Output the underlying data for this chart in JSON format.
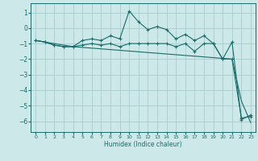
{
  "xlabel": "Humidex (Indice chaleur)",
  "background_color": "#cce8e8",
  "grid_color": "#aacccc",
  "line_color": "#1a6b6b",
  "xlim": [
    -0.5,
    23.5
  ],
  "ylim": [
    -6.7,
    1.6
  ],
  "yticks": [
    1,
    0,
    -1,
    -2,
    -3,
    -4,
    -5,
    -6
  ],
  "xticks": [
    0,
    1,
    2,
    3,
    4,
    5,
    6,
    7,
    8,
    9,
    10,
    11,
    12,
    13,
    14,
    15,
    16,
    17,
    18,
    19,
    20,
    21,
    22,
    23
  ],
  "line1_x": [
    0,
    1,
    2,
    3,
    4,
    5,
    6,
    7,
    8,
    9,
    10,
    11,
    12,
    13,
    14,
    15,
    16,
    17,
    18,
    19,
    20,
    21,
    22,
    23
  ],
  "line1_y": [
    -0.8,
    -0.9,
    -1.1,
    -1.2,
    -1.2,
    -1.1,
    -1.0,
    -1.1,
    -1.0,
    -1.2,
    -1.0,
    -1.0,
    -1.0,
    -1.0,
    -1.0,
    -1.2,
    -1.0,
    -1.5,
    -1.0,
    -1.0,
    -2.0,
    -2.0,
    -5.8,
    -5.7
  ],
  "line2_x": [
    0,
    1,
    2,
    3,
    4,
    5,
    6,
    7,
    8,
    9,
    10,
    11,
    12,
    13,
    14,
    15,
    16,
    17,
    18,
    19,
    20,
    21,
    22,
    23
  ],
  "line2_y": [
    -0.8,
    -0.9,
    -1.1,
    -1.2,
    -1.2,
    -0.8,
    -0.7,
    -0.8,
    -0.5,
    -0.7,
    1.1,
    0.4,
    -0.1,
    0.1,
    -0.1,
    -0.7,
    -0.4,
    -0.8,
    -0.5,
    -1.0,
    -2.0,
    -0.9,
    -5.9,
    -5.6
  ],
  "line3_x": [
    0,
    4,
    21,
    22,
    23
  ],
  "line3_y": [
    -0.8,
    -1.2,
    -2.0,
    -4.7,
    -6.1
  ]
}
